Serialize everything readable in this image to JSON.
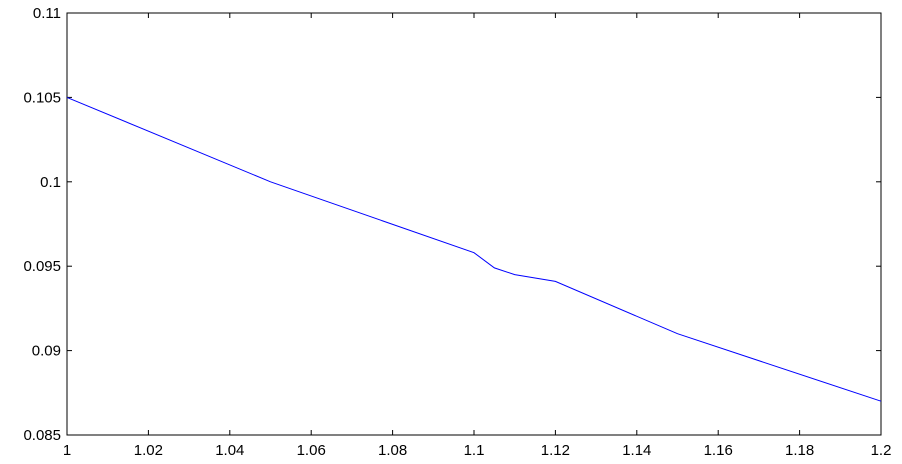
{
  "chart_data": {
    "type": "line",
    "title": "",
    "xlabel": "",
    "ylabel": "",
    "xlim": [
      1,
      1.2
    ],
    "ylim": [
      0.085,
      0.11
    ],
    "grid": false,
    "x_ticks": [
      1,
      1.02,
      1.04,
      1.06,
      1.08,
      1.1,
      1.12,
      1.14,
      1.16,
      1.18,
      1.2
    ],
    "x_tick_labels": [
      "1",
      "1.02",
      "1.04",
      "1.06",
      "1.08",
      "1.1",
      "1.12",
      "1.14",
      "1.16",
      "1.18",
      "1.2"
    ],
    "y_ticks": [
      0.085,
      0.09,
      0.095,
      0.1,
      0.105,
      0.11
    ],
    "y_tick_labels": [
      "0.085",
      "0.09",
      "0.095",
      "0.1",
      "0.105",
      "0.11"
    ],
    "series": [
      {
        "color": "#0000ff",
        "x": [
          1.0,
          1.05,
          1.1,
          1.105,
          1.11,
          1.12,
          1.15,
          1.2
        ],
        "y": [
          0.105,
          0.1,
          0.0958,
          0.0949,
          0.0945,
          0.0941,
          0.091,
          0.087
        ]
      }
    ]
  }
}
